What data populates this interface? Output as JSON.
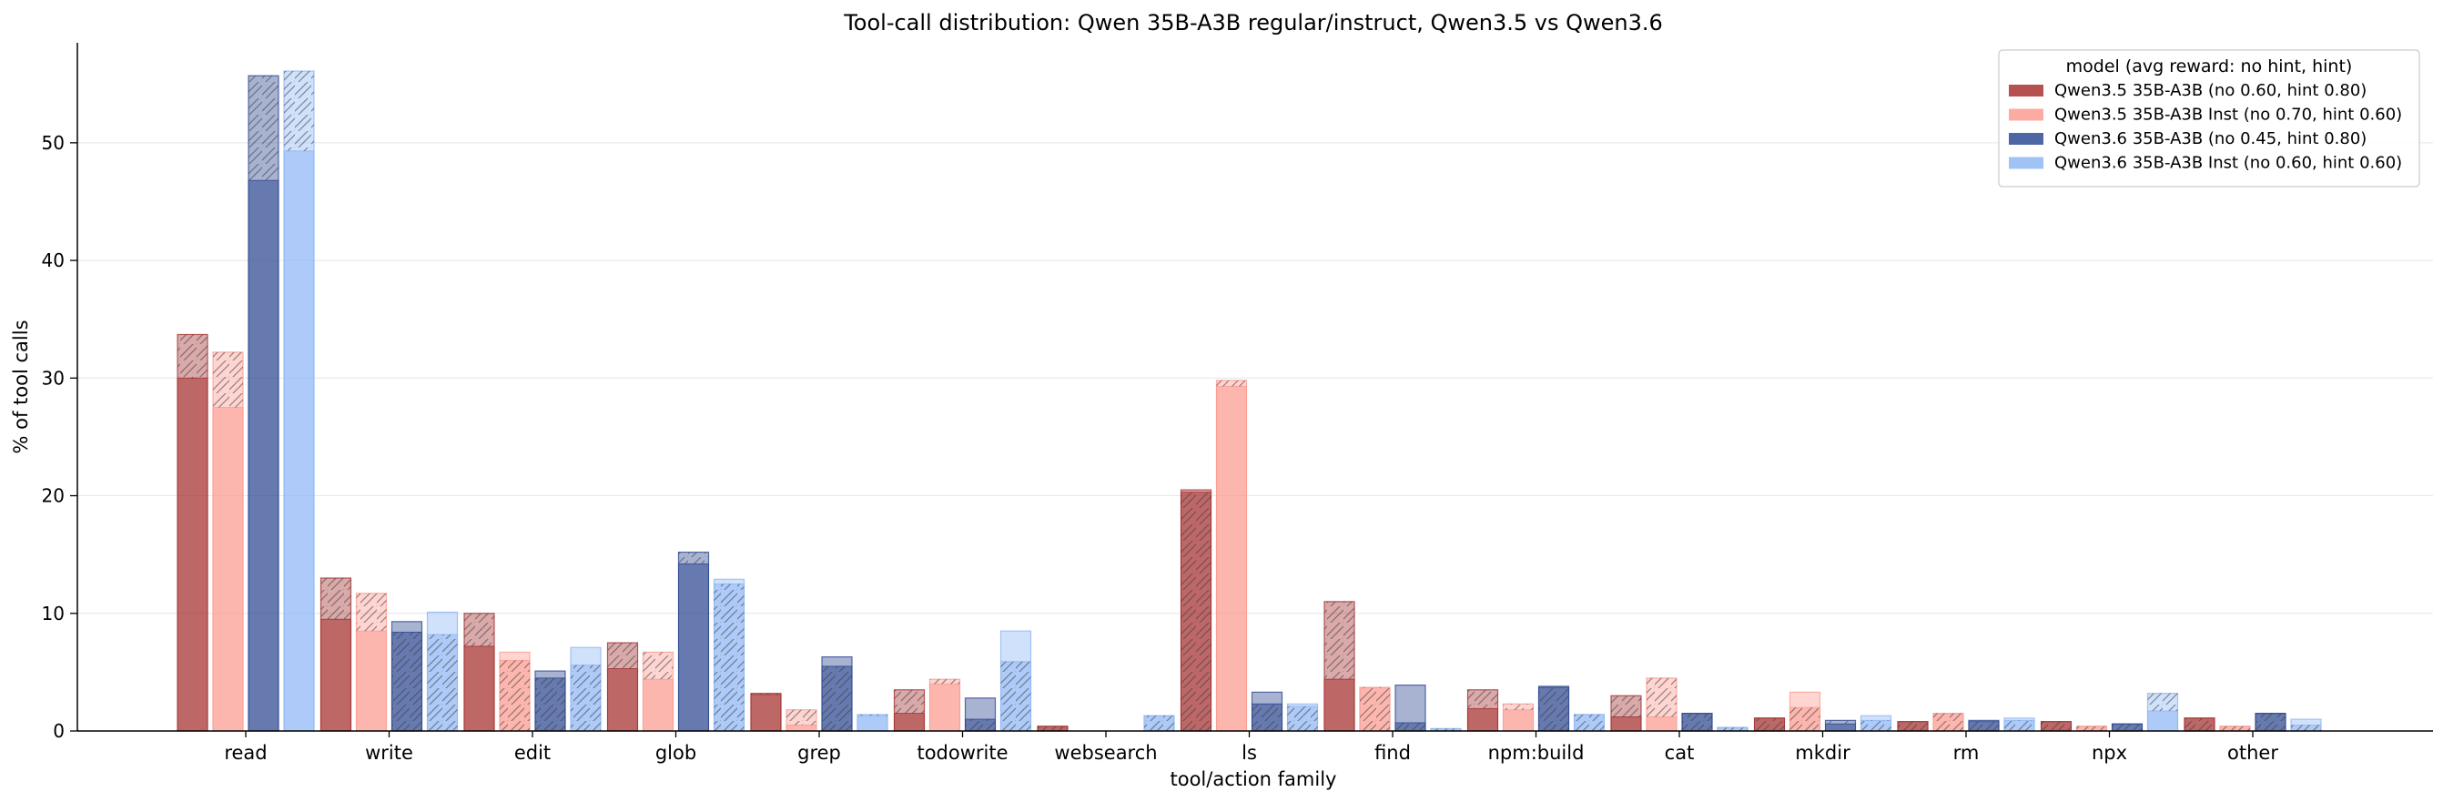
{
  "chart_data": {
    "type": "bar",
    "title": "Tool-call distribution: Qwen 35B-A3B regular/instruct, Qwen3.5 vs Qwen3.6",
    "xlabel": "tool/action family",
    "ylabel": "% of tool calls",
    "ylim": [
      0,
      58.5
    ],
    "yticks": [
      "0",
      "10",
      "20",
      "30",
      "40",
      "50"
    ],
    "grid": "y",
    "legend": {
      "placement": "top-right",
      "title": "model (avg reward: no hint, hint)"
    },
    "stacking_note": "solid lower segment = no hint; hatched upper segment = with hint",
    "categories": [
      "read",
      "write",
      "edit",
      "glob",
      "grep",
      "todowrite",
      "websearch",
      "ls",
      "find",
      "npm:build",
      "cat",
      "mkdir",
      "rm",
      "npx",
      "other"
    ],
    "series": [
      {
        "name": "Qwen3.5 35B-A3B (no 0.60, hint 0.80)",
        "color": "#a83232",
        "no_hint": [
          30.0,
          9.5,
          7.2,
          5.3,
          3.1,
          1.5,
          0.4,
          20.5,
          4.4,
          1.9,
          1.2,
          1.1,
          0.8,
          0.8,
          1.1
        ],
        "hint": [
          33.7,
          13.0,
          10.0,
          7.5,
          3.2,
          3.5,
          0.4,
          20.3,
          11.0,
          3.5,
          3.0,
          1.1,
          0.8,
          0.8,
          1.1
        ]
      },
      {
        "name": "Qwen3.5 35B-A3B Inst (no 0.70, hint 0.60)",
        "color": "#fc9c92",
        "no_hint": [
          27.5,
          8.5,
          6.7,
          4.4,
          0.5,
          4.0,
          0.0,
          29.3,
          3.7,
          1.8,
          1.2,
          3.3,
          1.5,
          0.4,
          0.4
        ],
        "hint": [
          32.2,
          11.7,
          6.0,
          6.7,
          1.8,
          4.4,
          0.0,
          29.8,
          3.7,
          2.3,
          4.5,
          2.0,
          1.5,
          0.4,
          0.4
        ]
      },
      {
        "name": "Qwen3.6 35B-A3B (no 0.45, hint 0.80)",
        "color": "#2f4b93",
        "no_hint": [
          46.8,
          9.3,
          5.1,
          14.2,
          6.3,
          2.8,
          0.0,
          3.3,
          3.9,
          3.8,
          1.5,
          0.6,
          0.9,
          0.6,
          1.5
        ],
        "hint": [
          55.7,
          8.4,
          4.5,
          15.2,
          5.5,
          1.0,
          0.0,
          2.3,
          0.7,
          3.7,
          1.5,
          0.9,
          0.8,
          0.6,
          1.5
        ]
      },
      {
        "name": "Qwen3.6 35B-A3B Inst (no 0.60, hint 0.60)",
        "color": "#8fb8f5",
        "no_hint": [
          49.3,
          10.1,
          7.1,
          12.9,
          1.3,
          8.5,
          1.3,
          2.3,
          0.2,
          1.4,
          0.3,
          1.3,
          1.1,
          1.7,
          1.0
        ],
        "hint": [
          56.1,
          8.2,
          5.6,
          12.5,
          1.4,
          5.9,
          1.3,
          2.1,
          0.2,
          1.4,
          0.3,
          0.9,
          0.9,
          3.2,
          0.5
        ]
      }
    ]
  }
}
